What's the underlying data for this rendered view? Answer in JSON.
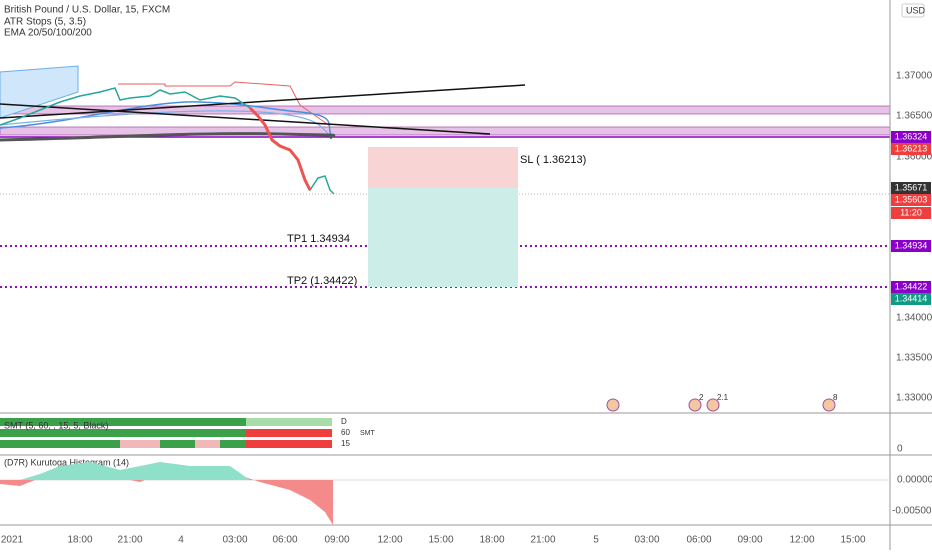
{
  "header": {
    "symbol": "British Pound / U.S. Dollar, 15, FXCM",
    "indicator1": "ATR Stops (5, 3.5)",
    "indicator2": "EMA 20/50/100/200"
  },
  "currency": "USD",
  "price_axis": [
    "1.37000",
    "1.36500",
    "1.36000",
    "1.34000",
    "1.33500",
    "1.33000"
  ],
  "badges": {
    "zone_top": "1.36324",
    "sl": "1.36213",
    "last": "1.35671",
    "bid": "1.35603",
    "countdown": "11:20",
    "tp1": "1.34934",
    "tp2": "1.34422",
    "ask": "1.34414"
  },
  "annotations": {
    "sl": "SL ( 1.36213)",
    "tp1": "TP1 1.34934",
    "tp2": "TP2 (1.34422)"
  },
  "events": [
    "2",
    "2.1",
    "8"
  ],
  "smt": {
    "title": "SMT (5, 60, , 15, 5, Black)",
    "rows": [
      "D",
      "60",
      "15"
    ],
    "tag": "SMT",
    "axis": "0"
  },
  "histogram": {
    "title": "(D7R) Kurutoga Histogram (14)",
    "axis": [
      "0.00000",
      "-0.00500"
    ]
  },
  "time_axis": [
    "2021",
    "18:00",
    "21:00",
    "4",
    "03:00",
    "06:00",
    "09:00",
    "12:00",
    "15:00",
    "18:00",
    "21:00",
    "5",
    "03:00",
    "06:00",
    "09:00",
    "12:00",
    "15:00"
  ]
}
